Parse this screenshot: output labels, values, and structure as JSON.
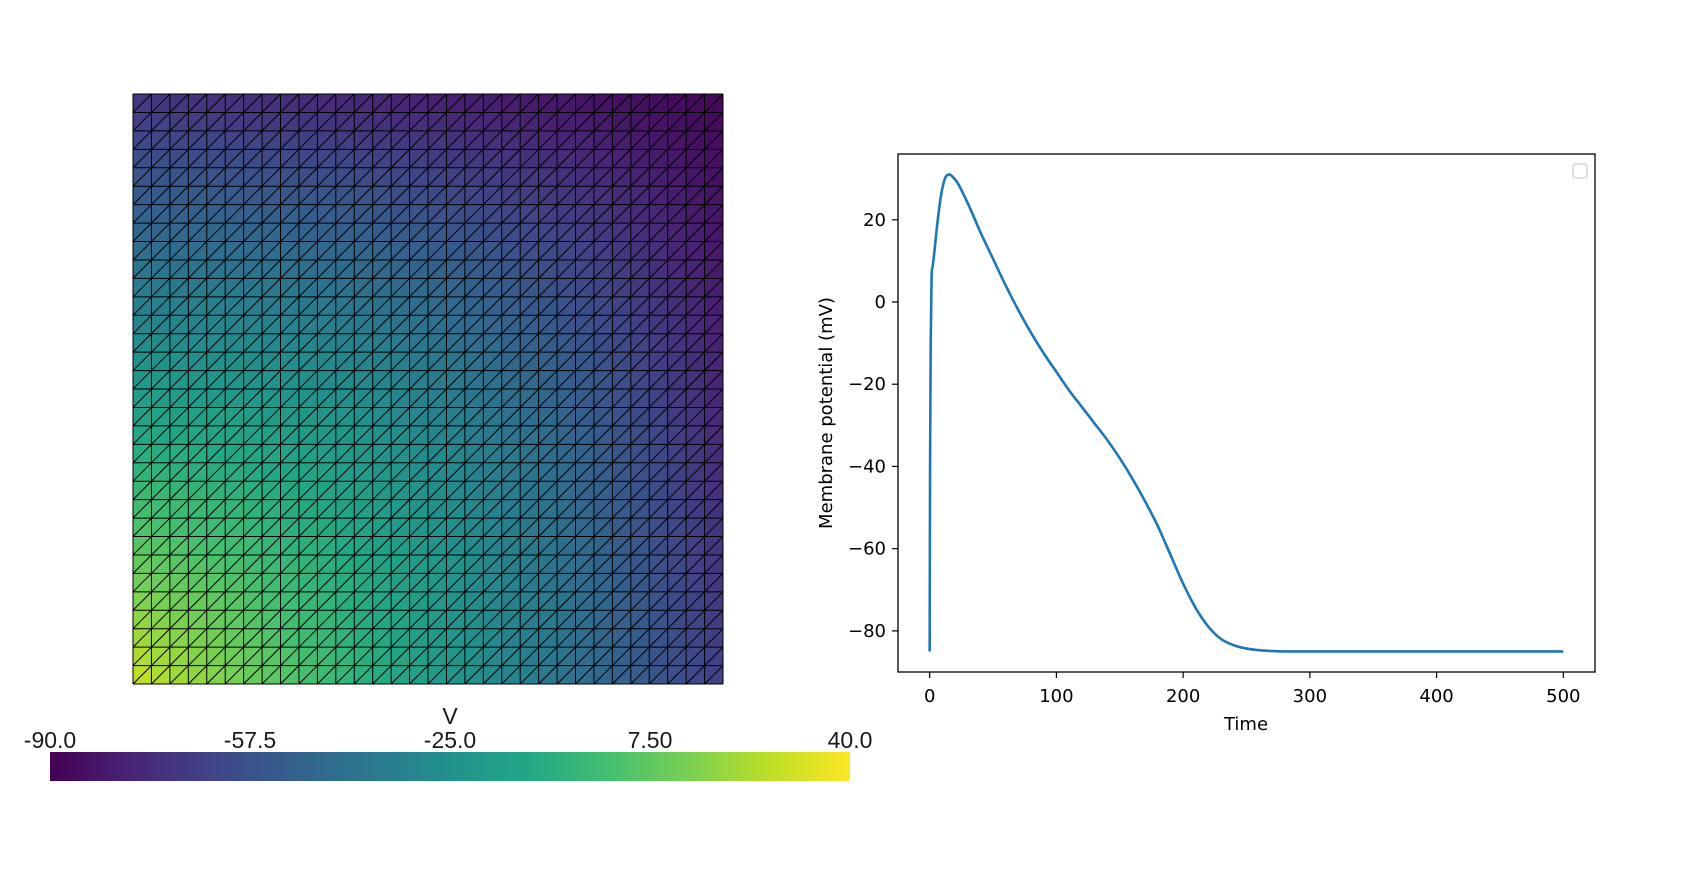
{
  "chart_data": [
    {
      "type": "heatmap",
      "colorbar": {
        "title": "V",
        "range": [
          -90.0,
          40.0
        ],
        "tick_labels": [
          "-90.0",
          "-57.5",
          "-25.0",
          "7.50",
          "40.0"
        ],
        "colormap": "viridis",
        "orientation": "horizontal",
        "placement": "bottom"
      },
      "mesh": {
        "grid_cells": 32,
        "triangulated": true,
        "edge_color": "#000000"
      },
      "field": {
        "description_values_mV": {
          "top_left": -70,
          "top_right": -88,
          "bottom_left": 30,
          "bottom_right": -66,
          "center": -34
        }
      }
    },
    {
      "type": "line",
      "title": "",
      "xlabel": "Time",
      "ylabel": "Membrane potential (mV)",
      "xlim": [
        -25,
        525
      ],
      "ylim": [
        -90,
        36
      ],
      "xticks": [
        0,
        100,
        200,
        300,
        400,
        500
      ],
      "yticks": [
        -80,
        -60,
        -40,
        -20,
        0,
        20
      ],
      "grid": false,
      "legend": {
        "placement": "top-right",
        "entries": []
      },
      "series": [
        {
          "color": "#1f77b4",
          "x": [
            0,
            0.3,
            0.8,
            1.5,
            2.5,
            4,
            6,
            9,
            12,
            15,
            18,
            22,
            27,
            33,
            40,
            50,
            60,
            70,
            80,
            90,
            100,
            110,
            120,
            130,
            140,
            150,
            160,
            170,
            180,
            190,
            200,
            210,
            220,
            230,
            240,
            250,
            260,
            270,
            280,
            300,
            350,
            400,
            450,
            500
          ],
          "y": [
            -85,
            -40,
            -10,
            6,
            9,
            13,
            19,
            26,
            30,
            31,
            30.5,
            29,
            26,
            22,
            17,
            10.5,
            4,
            -2,
            -7.5,
            -12.5,
            -17,
            -21.5,
            -25.5,
            -29.5,
            -33.5,
            -38,
            -43,
            -48.5,
            -54.5,
            -61.5,
            -68.5,
            -74.5,
            -79,
            -82,
            -83.5,
            -84.3,
            -84.7,
            -84.9,
            -85,
            -85,
            -85,
            -85,
            -85,
            -85
          ]
        }
      ]
    }
  ]
}
